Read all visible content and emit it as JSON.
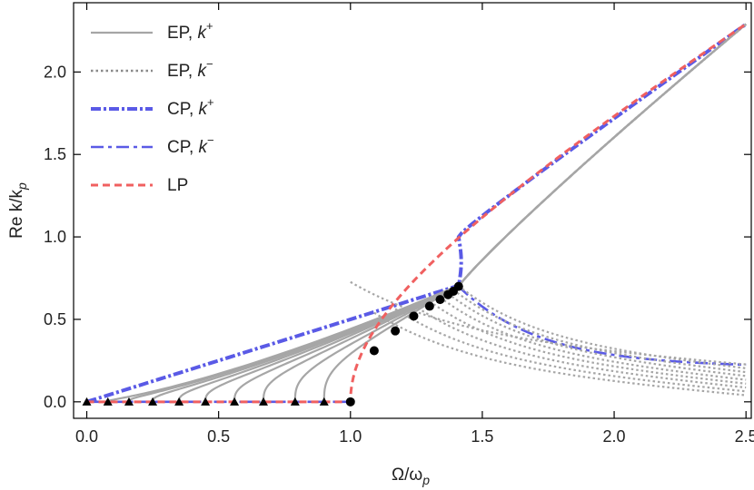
{
  "chart_data": {
    "type": "line",
    "xlabel": "Ω/ω",
    "xlabel_sub": "p",
    "ylabel": "Re k/k",
    "ylabel_sub": "p",
    "xlim": [
      -0.05,
      2.52
    ],
    "ylim": [
      -0.1,
      2.42
    ],
    "xticks": [
      0.0,
      0.5,
      1.0,
      1.5,
      2.0,
      2.5
    ],
    "xtick_labels": [
      "0.0",
      "0.5",
      "1.0",
      "1.5",
      "2.0",
      "2.5"
    ],
    "yticks": [
      0.0,
      0.5,
      1.0,
      1.5,
      2.0
    ],
    "ytick_labels": [
      "0.0",
      "0.5",
      "1.0",
      "1.5",
      "2.0"
    ],
    "legend": [
      {
        "label": "EP, ",
        "var": "k",
        "sup": "+",
        "style": "ep-plus"
      },
      {
        "label": "EP, ",
        "var": "k",
        "sup": "−",
        "style": "ep-minus"
      },
      {
        "label": "CP, ",
        "var": "k",
        "sup": "+",
        "style": "cp-plus"
      },
      {
        "label": "CP, ",
        "var": "k",
        "sup": "−",
        "style": "cp-minus"
      },
      {
        "label": "LP",
        "var": "",
        "sup": "",
        "style": "lp"
      }
    ],
    "colors": {
      "ep": "#a6a6a6",
      "ep_dark": "#8a8a8a",
      "cp": "#5a5ae6",
      "lp": "#f06060",
      "marker": "#000000"
    },
    "ep_params": [
      0.08,
      0.16,
      0.25,
      0.35,
      0.45,
      0.56,
      0.67,
      0.79,
      0.9
    ],
    "exceptional_points": [
      {
        "x": 1.09,
        "y": 0.31
      },
      {
        "x": 1.17,
        "y": 0.43
      },
      {
        "x": 1.24,
        "y": 0.52
      },
      {
        "x": 1.3,
        "y": 0.58
      },
      {
        "x": 1.34,
        "y": 0.62
      },
      {
        "x": 1.37,
        "y": 0.65
      },
      {
        "x": 1.39,
        "y": 0.67
      },
      {
        "x": 1.41,
        "y": 0.7
      },
      {
        "x": 1.0,
        "y": 0.0
      }
    ],
    "triangle_points": [
      {
        "x": 0.0,
        "y": 0.0
      },
      {
        "x": 0.08,
        "y": 0.0
      },
      {
        "x": 0.16,
        "y": 0.0
      },
      {
        "x": 0.25,
        "y": 0.0
      },
      {
        "x": 0.35,
        "y": 0.0
      },
      {
        "x": 0.45,
        "y": 0.0
      },
      {
        "x": 0.56,
        "y": 0.0
      },
      {
        "x": 0.67,
        "y": 0.0
      },
      {
        "x": 0.79,
        "y": 0.0
      },
      {
        "x": 0.9,
        "y": 0.0
      }
    ]
  }
}
